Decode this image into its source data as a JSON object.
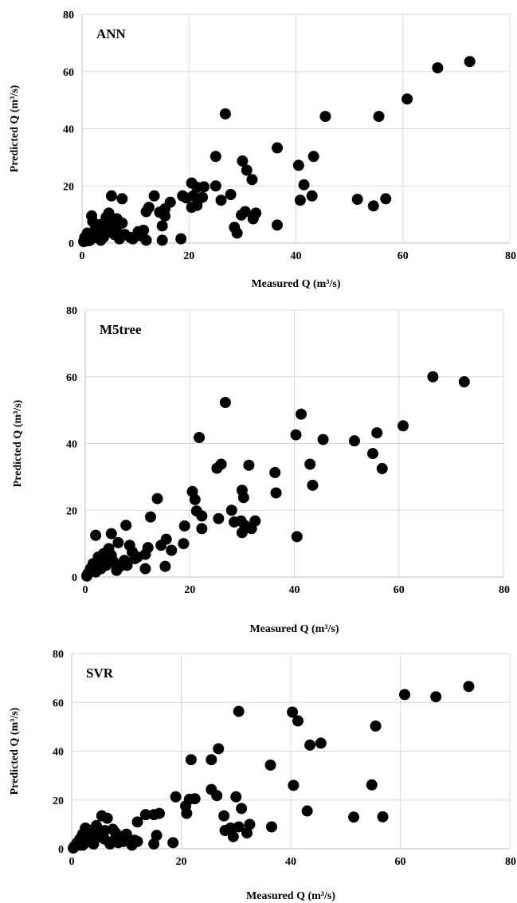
{
  "chart_data": [
    {
      "type": "scatter",
      "title": "ANN",
      "xlabel": "Measured Q (m³/s)",
      "ylabel": "Predicted Q (m³/s)",
      "xlim": [
        0,
        80
      ],
      "ylim": [
        0,
        80
      ],
      "xticks": [
        "0",
        "20",
        "40",
        "60",
        "80"
      ],
      "yticks": [
        "0",
        "20",
        "40",
        "60",
        "80"
      ],
      "grid": true,
      "marker_color": "#000000",
      "points": [
        [
          72.5,
          63.5
        ],
        [
          66.5,
          61.3
        ],
        [
          60.8,
          50.4
        ],
        [
          55.5,
          44.3
        ],
        [
          45.5,
          44.3
        ],
        [
          36.5,
          33.3
        ],
        [
          26.8,
          45.2
        ],
        [
          25.0,
          30.3
        ],
        [
          43.3,
          30.3
        ],
        [
          40.5,
          27.2
        ],
        [
          41.5,
          20.4
        ],
        [
          43.0,
          16.5
        ],
        [
          40.8,
          15.0
        ],
        [
          51.5,
          15.3
        ],
        [
          54.5,
          13.0
        ],
        [
          56.8,
          15.5
        ],
        [
          30.0,
          28.7
        ],
        [
          30.8,
          25.5
        ],
        [
          31.8,
          22.2
        ],
        [
          25.0,
          20.0
        ],
        [
          20.5,
          21.0
        ],
        [
          21.5,
          19.5
        ],
        [
          22.8,
          19.7
        ],
        [
          20.8,
          16.5
        ],
        [
          22.5,
          16.0
        ],
        [
          21.5,
          13.2
        ],
        [
          20.5,
          12.5
        ],
        [
          19.5,
          15.8
        ],
        [
          18.8,
          16.5
        ],
        [
          16.5,
          14.3
        ],
        [
          13.5,
          16.5
        ],
        [
          15.5,
          12.0
        ],
        [
          14.5,
          10.8
        ],
        [
          15.5,
          9.5
        ],
        [
          12.5,
          12.5
        ],
        [
          12.0,
          11.0
        ],
        [
          27.8,
          17.0
        ],
        [
          26.0,
          15.0
        ],
        [
          36.5,
          6.3
        ],
        [
          32.5,
          10.5
        ],
        [
          32.0,
          8.5
        ],
        [
          30.5,
          11.0
        ],
        [
          29.8,
          9.8
        ],
        [
          28.5,
          5.5
        ],
        [
          29.0,
          3.5
        ],
        [
          15.0,
          6.0
        ],
        [
          15.0,
          1.0
        ],
        [
          18.5,
          1.5
        ],
        [
          11.5,
          4.5
        ],
        [
          11.0,
          2.5
        ],
        [
          10.5,
          4.0
        ],
        [
          9.5,
          1.5
        ],
        [
          12.0,
          1.0
        ],
        [
          7.5,
          7.0
        ],
        [
          6.5,
          8.5
        ],
        [
          5.0,
          10.5
        ],
        [
          7.5,
          15.5
        ],
        [
          5.5,
          16.5
        ],
        [
          4.5,
          9.0
        ],
        [
          3.5,
          6.5
        ],
        [
          2.5,
          5.0
        ],
        [
          2.0,
          7.5
        ],
        [
          1.8,
          9.5
        ],
        [
          1.0,
          3.5
        ],
        [
          0.5,
          2.0
        ],
        [
          0.3,
          0.5
        ],
        [
          1.5,
          1.0
        ],
        [
          2.5,
          2.5
        ],
        [
          3.0,
          3.8
        ],
        [
          4.0,
          2.0
        ],
        [
          5.0,
          4.0
        ],
        [
          6.0,
          3.0
        ],
        [
          6.5,
          5.5
        ],
        [
          7.0,
          1.5
        ],
        [
          8.0,
          3.0
        ],
        [
          9.0,
          2.0
        ],
        [
          3.5,
          1.0
        ],
        [
          2.0,
          1.8
        ],
        [
          1.2,
          0.8
        ],
        [
          0.8,
          1.5
        ],
        [
          4.5,
          5.5
        ],
        [
          5.5,
          6.5
        ],
        [
          6.0,
          7.5
        ]
      ]
    },
    {
      "type": "scatter",
      "title": "M5tree",
      "xlabel": "Measured Q (m³/s)",
      "ylabel": "Predicted Q (m³/s)",
      "xlim": [
        0,
        80
      ],
      "ylim": [
        0,
        80
      ],
      "xticks": [
        "0",
        "20",
        "40",
        "60",
        "80"
      ],
      "yticks": [
        "0",
        "20",
        "40",
        "60",
        "80"
      ],
      "grid": true,
      "marker_color": "#000000",
      "points": [
        [
          66.5,
          60.0
        ],
        [
          72.5,
          58.5
        ],
        [
          26.8,
          52.3
        ],
        [
          41.3,
          48.8
        ],
        [
          40.3,
          42.6
        ],
        [
          45.5,
          41.2
        ],
        [
          55.8,
          43.2
        ],
        [
          51.5,
          40.8
        ],
        [
          60.8,
          45.3
        ],
        [
          55.0,
          37.0
        ],
        [
          56.8,
          32.5
        ],
        [
          43.0,
          33.8
        ],
        [
          43.5,
          27.5
        ],
        [
          21.8,
          41.8
        ],
        [
          26.0,
          33.8
        ],
        [
          25.2,
          32.6
        ],
        [
          31.3,
          33.5
        ],
        [
          36.3,
          31.3
        ],
        [
          36.5,
          25.2
        ],
        [
          30.0,
          26.0
        ],
        [
          30.3,
          23.8
        ],
        [
          20.5,
          25.6
        ],
        [
          21.0,
          23.2
        ],
        [
          21.3,
          19.8
        ],
        [
          22.3,
          18.3
        ],
        [
          22.3,
          14.5
        ],
        [
          25.5,
          17.5
        ],
        [
          28.0,
          20.0
        ],
        [
          28.5,
          16.5
        ],
        [
          29.8,
          16.8
        ],
        [
          30.5,
          15.5
        ],
        [
          32.5,
          16.8
        ],
        [
          31.8,
          14.5
        ],
        [
          30.0,
          13.3
        ],
        [
          40.5,
          12.1
        ],
        [
          13.8,
          23.5
        ],
        [
          12.5,
          18.0
        ],
        [
          19.0,
          15.3
        ],
        [
          18.8,
          10.0
        ],
        [
          15.5,
          11.3
        ],
        [
          16.5,
          8.0
        ],
        [
          14.5,
          9.5
        ],
        [
          15.3,
          3.2
        ],
        [
          12.0,
          8.8
        ],
        [
          11.5,
          6.8
        ],
        [
          11.5,
          2.5
        ],
        [
          10.0,
          6.0
        ],
        [
          9.0,
          7.5
        ],
        [
          8.5,
          9.5
        ],
        [
          7.8,
          15.5
        ],
        [
          6.3,
          10.3
        ],
        [
          5.0,
          13.0
        ],
        [
          2.0,
          12.5
        ],
        [
          4.5,
          8.5
        ],
        [
          3.5,
          7.0
        ],
        [
          2.5,
          6.0
        ],
        [
          1.5,
          4.0
        ],
        [
          1.0,
          2.5
        ],
        [
          0.5,
          1.0
        ],
        [
          0.3,
          0.3
        ],
        [
          2.0,
          1.5
        ],
        [
          3.0,
          2.5
        ],
        [
          4.0,
          3.5
        ],
        [
          5.5,
          4.5
        ],
        [
          6.5,
          3.0
        ],
        [
          7.5,
          5.0
        ],
        [
          8.0,
          3.5
        ],
        [
          6.0,
          2.0
        ],
        [
          5.0,
          6.5
        ],
        [
          4.0,
          5.0
        ],
        [
          3.0,
          4.0
        ],
        [
          1.5,
          2.0
        ],
        [
          2.5,
          3.0
        ],
        [
          9.5,
          5.5
        ]
      ]
    },
    {
      "type": "scatter",
      "title": "SVR",
      "xlabel": "Measured Q (m³/s)",
      "ylabel": "Predicted Q (m³/s)",
      "xlim": [
        0,
        80
      ],
      "ylim": [
        0,
        80
      ],
      "xticks": [
        "0",
        "20",
        "40",
        "60",
        "80"
      ],
      "yticks": [
        "0",
        "20",
        "40",
        "60",
        "80"
      ],
      "grid": true,
      "marker_color": "#000000",
      "points": [
        [
          72.5,
          66.5
        ],
        [
          66.5,
          62.3
        ],
        [
          60.8,
          63.2
        ],
        [
          55.5,
          50.3
        ],
        [
          40.3,
          56.0
        ],
        [
          41.3,
          52.4
        ],
        [
          45.5,
          43.3
        ],
        [
          43.5,
          42.5
        ],
        [
          30.5,
          56.3
        ],
        [
          26.8,
          41.0
        ],
        [
          25.5,
          36.5
        ],
        [
          21.8,
          36.5
        ],
        [
          36.3,
          34.3
        ],
        [
          40.5,
          26.0
        ],
        [
          54.8,
          26.2
        ],
        [
          43.0,
          15.5
        ],
        [
          51.5,
          13.0
        ],
        [
          56.8,
          13.1
        ],
        [
          36.5,
          9.0
        ],
        [
          30.0,
          21.3
        ],
        [
          25.5,
          24.3
        ],
        [
          26.5,
          21.8
        ],
        [
          22.5,
          20.5
        ],
        [
          21.5,
          20.3
        ],
        [
          20.8,
          17.5
        ],
        [
          21.0,
          14.5
        ],
        [
          19.0,
          21.3
        ],
        [
          31.0,
          16.5
        ],
        [
          27.8,
          13.5
        ],
        [
          30.5,
          9.0
        ],
        [
          29.0,
          8.5
        ],
        [
          28.0,
          7.5
        ],
        [
          29.5,
          5.0
        ],
        [
          32.0,
          6.5
        ],
        [
          32.5,
          10.0
        ],
        [
          18.5,
          2.5
        ],
        [
          16.0,
          14.5
        ],
        [
          15.0,
          14.0
        ],
        [
          13.5,
          14.0
        ],
        [
          12.0,
          11.0
        ],
        [
          15.5,
          5.5
        ],
        [
          15.0,
          2.0
        ],
        [
          11.5,
          3.5
        ],
        [
          10.0,
          6.0
        ],
        [
          9.0,
          5.0
        ],
        [
          8.0,
          6.5
        ],
        [
          7.5,
          3.0
        ],
        [
          6.5,
          12.5
        ],
        [
          5.5,
          13.5
        ],
        [
          4.5,
          9.5
        ],
        [
          3.5,
          7.5
        ],
        [
          2.5,
          8.5
        ],
        [
          2.0,
          6.0
        ],
        [
          1.5,
          4.0
        ],
        [
          1.0,
          2.5
        ],
        [
          0.5,
          1.0
        ],
        [
          0.3,
          0.3
        ],
        [
          2.0,
          1.5
        ],
        [
          3.0,
          3.0
        ],
        [
          4.0,
          2.0
        ],
        [
          5.0,
          5.0
        ],
        [
          6.0,
          4.0
        ],
        [
          7.0,
          2.0
        ],
        [
          8.5,
          2.5
        ],
        [
          9.5,
          3.0
        ],
        [
          11.0,
          1.5
        ],
        [
          12.0,
          3.0
        ],
        [
          3.5,
          5.0
        ],
        [
          4.5,
          6.5
        ],
        [
          6.0,
          7.5
        ],
        [
          7.5,
          8.0
        ],
        [
          1.5,
          1.5
        ],
        [
          2.5,
          2.5
        ]
      ]
    }
  ]
}
